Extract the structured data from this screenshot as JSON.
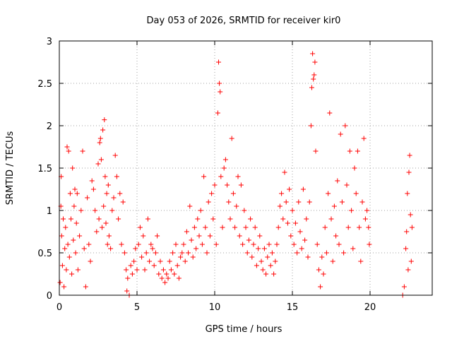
{
  "chart_data": {
    "type": "scatter",
    "title": "Day 053 of 2026, SRMTID for receiver kir0",
    "xlabel": "GPS time / hours",
    "ylabel": "SRMTID / TECUs",
    "xlim": [
      0,
      24
    ],
    "ylim": [
      0,
      3
    ],
    "xticks": [
      0,
      5,
      10,
      15,
      20
    ],
    "xtick_labels": [
      "0",
      "5",
      "10",
      "15",
      "20"
    ],
    "yticks": [
      0,
      0.5,
      1,
      1.5,
      2,
      2.5,
      3
    ],
    "ytick_labels": [
      "0",
      "0.5",
      "1",
      "1.5",
      "2",
      "2.5",
      "3"
    ],
    "grid": true,
    "marker": "+",
    "color": "#ff0000",
    "series": [
      {
        "name": "SRMTID",
        "points": [
          [
            0.05,
            0.15
          ],
          [
            0.1,
            1.05
          ],
          [
            0.12,
            1.4
          ],
          [
            0.15,
            0.7
          ],
          [
            0.2,
            0.35
          ],
          [
            0.25,
            0.9
          ],
          [
            0.3,
            0.1
          ],
          [
            0.35,
            0.55
          ],
          [
            0.4,
            0.8
          ],
          [
            0.45,
            0.3
          ],
          [
            0.5,
            1.75
          ],
          [
            0.55,
            0.6
          ],
          [
            0.6,
            1.7
          ],
          [
            0.65,
            0.45
          ],
          [
            0.7,
            1.2
          ],
          [
            0.75,
            0.9
          ],
          [
            0.8,
            0.25
          ],
          [
            0.85,
            1.5
          ],
          [
            0.9,
            0.65
          ],
          [
            0.95,
            1.05
          ],
          [
            1.0,
            1.25
          ],
          [
            1.05,
            0.5
          ],
          [
            1.1,
            0.85
          ],
          [
            1.15,
            1.2
          ],
          [
            1.2,
            0.3
          ],
          [
            1.3,
            0.7
          ],
          [
            1.4,
            1.0
          ],
          [
            1.5,
            1.7
          ],
          [
            1.6,
            0.55
          ],
          [
            1.7,
            0.1
          ],
          [
            1.8,
            1.15
          ],
          [
            1.9,
            0.6
          ],
          [
            2.0,
            0.4
          ],
          [
            2.1,
            1.35
          ],
          [
            2.2,
            1.25
          ],
          [
            2.3,
            1.0
          ],
          [
            2.4,
            0.75
          ],
          [
            2.5,
            1.55
          ],
          [
            2.55,
            0.9
          ],
          [
            2.6,
            1.8
          ],
          [
            2.65,
            1.85
          ],
          [
            2.7,
            1.6
          ],
          [
            2.75,
            0.8
          ],
          [
            2.8,
            1.95
          ],
          [
            2.85,
            1.05
          ],
          [
            2.9,
            2.07
          ],
          [
            2.95,
            1.4
          ],
          [
            3.0,
            0.85
          ],
          [
            3.05,
            1.2
          ],
          [
            3.1,
            0.6
          ],
          [
            3.15,
            1.3
          ],
          [
            3.2,
            0.7
          ],
          [
            3.3,
            0.55
          ],
          [
            3.4,
            1.0
          ],
          [
            3.5,
            1.15
          ],
          [
            3.6,
            1.65
          ],
          [
            3.7,
            1.4
          ],
          [
            3.8,
            0.9
          ],
          [
            3.9,
            1.2
          ],
          [
            4.0,
            0.6
          ],
          [
            4.1,
            1.1
          ],
          [
            4.2,
            0.5
          ],
          [
            4.3,
            0.3
          ],
          [
            4.35,
            0.05
          ],
          [
            4.4,
            0.2
          ],
          [
            4.5,
            0.0
          ],
          [
            4.6,
            0.35
          ],
          [
            4.7,
            0.25
          ],
          [
            4.8,
            0.4
          ],
          [
            4.9,
            0.55
          ],
          [
            5.0,
            0.3
          ],
          [
            5.1,
            0.6
          ],
          [
            5.2,
            0.8
          ],
          [
            5.3,
            0.45
          ],
          [
            5.4,
            0.7
          ],
          [
            5.5,
            0.3
          ],
          [
            5.6,
            0.5
          ],
          [
            5.7,
            0.9
          ],
          [
            5.8,
            0.4
          ],
          [
            5.9,
            0.6
          ],
          [
            6.0,
            0.55
          ],
          [
            6.1,
            0.35
          ],
          [
            6.2,
            0.5
          ],
          [
            6.3,
            0.7
          ],
          [
            6.4,
            0.25
          ],
          [
            6.5,
            0.4
          ],
          [
            6.6,
            0.2
          ],
          [
            6.7,
            0.3
          ],
          [
            6.8,
            0.15
          ],
          [
            6.9,
            0.25
          ],
          [
            7.0,
            0.2
          ],
          [
            7.1,
            0.4
          ],
          [
            7.2,
            0.3
          ],
          [
            7.3,
            0.5
          ],
          [
            7.4,
            0.25
          ],
          [
            7.5,
            0.6
          ],
          [
            7.6,
            0.35
          ],
          [
            7.7,
            0.2
          ],
          [
            7.8,
            0.45
          ],
          [
            7.9,
            0.5
          ],
          [
            8.0,
            0.6
          ],
          [
            8.1,
            0.4
          ],
          [
            8.2,
            0.75
          ],
          [
            8.3,
            0.5
          ],
          [
            8.4,
            1.05
          ],
          [
            8.5,
            0.65
          ],
          [
            8.6,
            0.45
          ],
          [
            8.7,
            0.8
          ],
          [
            8.8,
            0.55
          ],
          [
            8.9,
            0.9
          ],
          [
            9.0,
            0.7
          ],
          [
            9.1,
            1.0
          ],
          [
            9.2,
            0.6
          ],
          [
            9.3,
            1.4
          ],
          [
            9.4,
            0.8
          ],
          [
            9.5,
            0.5
          ],
          [
            9.6,
            1.1
          ],
          [
            9.7,
            0.7
          ],
          [
            9.8,
            1.2
          ],
          [
            9.9,
            0.9
          ],
          [
            10.0,
            1.3
          ],
          [
            10.1,
            0.6
          ],
          [
            10.2,
            2.15
          ],
          [
            10.25,
            2.75
          ],
          [
            10.3,
            2.5
          ],
          [
            10.35,
            2.4
          ],
          [
            10.4,
            1.4
          ],
          [
            10.5,
            0.8
          ],
          [
            10.6,
            1.5
          ],
          [
            10.7,
            1.6
          ],
          [
            10.8,
            1.3
          ],
          [
            10.9,
            1.1
          ],
          [
            11.0,
            0.9
          ],
          [
            11.1,
            1.85
          ],
          [
            11.2,
            1.2
          ],
          [
            11.3,
            0.8
          ],
          [
            11.4,
            1.05
          ],
          [
            11.5,
            1.4
          ],
          [
            11.6,
            0.7
          ],
          [
            11.7,
            1.3
          ],
          [
            11.8,
            0.6
          ],
          [
            11.9,
            1.0
          ],
          [
            12.0,
            0.8
          ],
          [
            12.1,
            0.5
          ],
          [
            12.2,
            0.65
          ],
          [
            12.3,
            0.9
          ],
          [
            12.4,
            0.45
          ],
          [
            12.5,
            0.6
          ],
          [
            12.6,
            0.8
          ],
          [
            12.7,
            0.35
          ],
          [
            12.8,
            0.55
          ],
          [
            12.9,
            0.7
          ],
          [
            13.0,
            0.4
          ],
          [
            13.1,
            0.3
          ],
          [
            13.2,
            0.55
          ],
          [
            13.3,
            0.25
          ],
          [
            13.4,
            0.45
          ],
          [
            13.5,
            0.6
          ],
          [
            13.6,
            0.35
          ],
          [
            13.7,
            0.5
          ],
          [
            13.8,
            0.25
          ],
          [
            13.9,
            0.4
          ],
          [
            14.0,
            0.6
          ],
          [
            14.1,
            0.8
          ],
          [
            14.2,
            1.05
          ],
          [
            14.3,
            1.2
          ],
          [
            14.4,
            0.9
          ],
          [
            14.5,
            1.45
          ],
          [
            14.6,
            1.1
          ],
          [
            14.7,
            0.85
          ],
          [
            14.8,
            1.25
          ],
          [
            14.9,
            0.7
          ],
          [
            15.0,
            1.0
          ],
          [
            15.1,
            0.6
          ],
          [
            15.2,
            0.85
          ],
          [
            15.3,
            0.5
          ],
          [
            15.4,
            1.1
          ],
          [
            15.5,
            0.75
          ],
          [
            15.6,
            0.55
          ],
          [
            15.7,
            1.25
          ],
          [
            15.8,
            0.65
          ],
          [
            15.9,
            0.9
          ],
          [
            16.0,
            0.45
          ],
          [
            16.1,
            1.1
          ],
          [
            16.2,
            2.0
          ],
          [
            16.25,
            2.45
          ],
          [
            16.3,
            2.85
          ],
          [
            16.35,
            2.55
          ],
          [
            16.4,
            2.6
          ],
          [
            16.45,
            2.75
          ],
          [
            16.5,
            1.7
          ],
          [
            16.6,
            0.6
          ],
          [
            16.7,
            0.3
          ],
          [
            16.8,
            0.1
          ],
          [
            16.9,
            0.45
          ],
          [
            17.0,
            0.25
          ],
          [
            17.1,
            0.8
          ],
          [
            17.2,
            0.5
          ],
          [
            17.3,
            1.2
          ],
          [
            17.4,
            2.15
          ],
          [
            17.5,
            0.9
          ],
          [
            17.6,
            0.4
          ],
          [
            17.7,
            1.05
          ],
          [
            17.8,
            0.7
          ],
          [
            17.9,
            1.35
          ],
          [
            18.0,
            0.6
          ],
          [
            18.1,
            1.9
          ],
          [
            18.2,
            1.1
          ],
          [
            18.3,
            0.5
          ],
          [
            18.4,
            2.0
          ],
          [
            18.5,
            1.3
          ],
          [
            18.6,
            0.8
          ],
          [
            18.7,
            1.7
          ],
          [
            18.8,
            1.0
          ],
          [
            18.9,
            0.55
          ],
          [
            19.0,
            1.5
          ],
          [
            19.1,
            1.2
          ],
          [
            19.2,
            1.7
          ],
          [
            19.3,
            0.8
          ],
          [
            19.4,
            0.4
          ],
          [
            19.5,
            1.1
          ],
          [
            19.6,
            1.85
          ],
          [
            19.7,
            0.9
          ],
          [
            19.8,
            1.0
          ],
          [
            19.9,
            0.8
          ],
          [
            19.95,
            0.6
          ],
          [
            22.1,
            0.0
          ],
          [
            22.2,
            0.1
          ],
          [
            22.3,
            0.55
          ],
          [
            22.35,
            0.75
          ],
          [
            22.4,
            1.2
          ],
          [
            22.45,
            0.3
          ],
          [
            22.5,
            1.45
          ],
          [
            22.55,
            1.65
          ],
          [
            22.6,
            0.95
          ],
          [
            22.65,
            0.4
          ],
          [
            22.7,
            0.8
          ]
        ]
      }
    ]
  }
}
